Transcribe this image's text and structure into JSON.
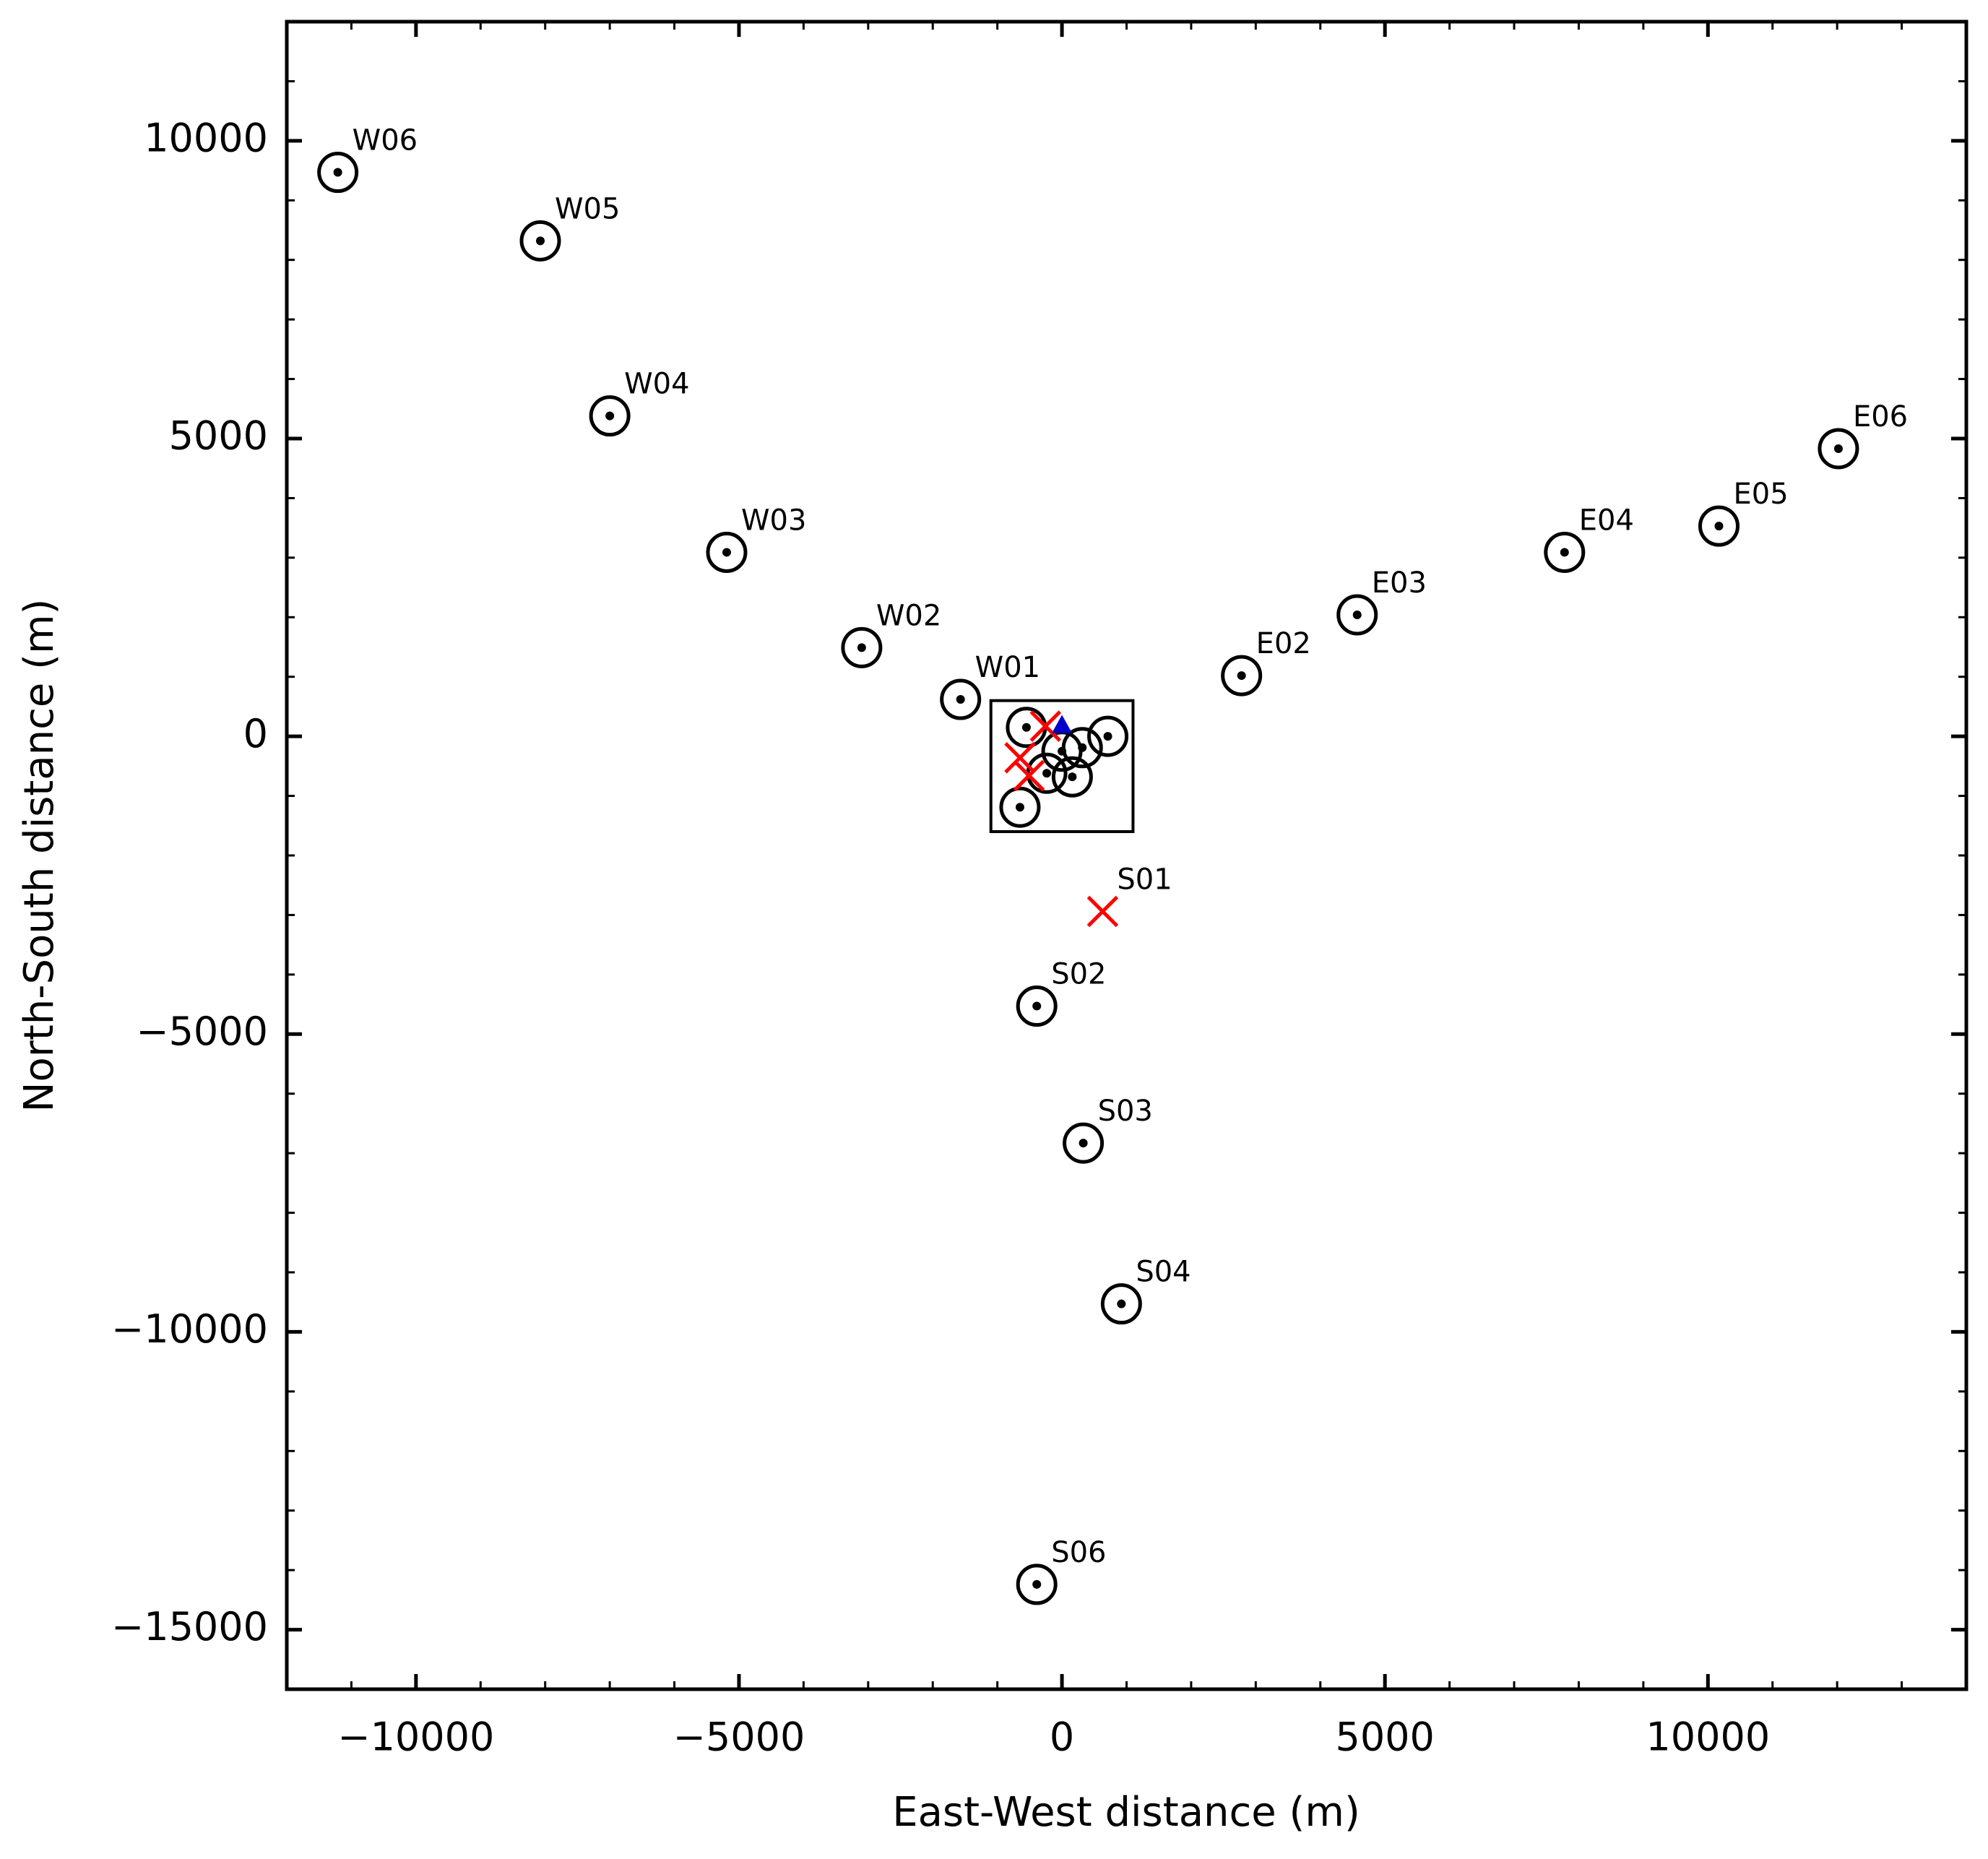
{
  "chart_data": {
    "type": "scatter",
    "xlabel": "East-West distance (m)",
    "ylabel": "North-South distance (m)",
    "xlim": [
      -12000,
      14000
    ],
    "ylim": [
      -16000,
      12000
    ],
    "xticks": [
      {
        "value": -10000,
        "label": "−10000"
      },
      {
        "value": -5000,
        "label": "−5000"
      },
      0,
      5000,
      10000
    ],
    "yticks": [
      {
        "value": -15000,
        "label": "−15000"
      },
      {
        "value": -10000,
        "label": "−10000"
      },
      {
        "value": -5000,
        "label": "−5000"
      },
      0,
      5000,
      10000
    ],
    "xminorticks": [
      -11000,
      -9000,
      -8000,
      -7000,
      -6000,
      -4000,
      -3000,
      -2000,
      -1000,
      1000,
      2000,
      3000,
      4000,
      6000,
      7000,
      8000,
      9000,
      11000,
      12000,
      13000
    ],
    "yminorticks": [
      -14000,
      -13000,
      -12000,
      -11000,
      -9000,
      -8000,
      -7000,
      -6000,
      -4000,
      -3000,
      -2000,
      -1000,
      1000,
      2000,
      3000,
      4000,
      6000,
      7000,
      8000,
      9000,
      11000
    ],
    "box": {
      "x": [
        -1100,
        1100
      ],
      "y": [
        -1600,
        600
      ]
    },
    "series": [
      {
        "marker": "circle-dot",
        "color": "#000000",
        "x": [
          -11210,
          -8075,
          -7000,
          -5190,
          -3100,
          -1570,
          2780,
          4570,
          7780,
          10170,
          12020,
          -390,
          330,
          920,
          -390,
          -550,
          710,
          -650,
          -235,
          160,
          315,
          0
        ],
        "y": [
          9470,
          8320,
          5380,
          3090,
          1490,
          620,
          1020,
          2040,
          3090,
          3530,
          4830,
          -4530,
          -6830,
          -9530,
          -14240,
          150,
          0,
          -1190,
          -620,
          -680,
          -190,
          -250
        ],
        "labels": [
          "W06",
          "W05",
          "W04",
          "W03",
          "W02",
          "W01",
          "E02",
          "E03",
          "E04",
          "E05",
          "E06",
          "S02",
          "S03",
          "S04",
          "S06",
          null,
          null,
          null,
          null,
          null,
          null,
          null
        ]
      },
      {
        "marker": "x",
        "color": "#ff0000",
        "x": [
          630,
          -650,
          -510,
          -255
        ],
        "y": [
          -2940,
          -360,
          -660,
          170
        ],
        "labels": [
          "S01",
          null,
          null,
          null
        ]
      },
      {
        "marker": "triangle",
        "color": "#0000cc",
        "x": [
          0
        ],
        "y": [
          190
        ],
        "labels": [
          null
        ]
      }
    ]
  }
}
